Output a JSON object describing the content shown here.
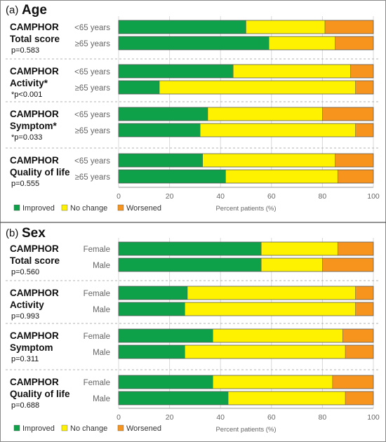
{
  "chart_data": [
    {
      "type": "bar",
      "orientation": "horizontal",
      "stacked": true,
      "panel_letter": "(a)",
      "title": "Age",
      "xlabel": "Percent patients (%)",
      "xlim": [
        0,
        100
      ],
      "xticks": [
        "0",
        "20",
        "40",
        "60",
        "80",
        "100"
      ],
      "grid": true,
      "legend_position": "bottom-left",
      "series_names": [
        "Improved",
        "No change",
        "Worsened"
      ],
      "colors": [
        "#0fa04a",
        "#fff200",
        "#f7941d"
      ],
      "groups": [
        {
          "name_lines": [
            "CAMPHOR",
            "Total score"
          ],
          "p_label": "p=0.583",
          "bars": [
            {
              "category": "<65 years",
              "values": [
                50,
                31,
                19
              ]
            },
            {
              "category": "≥65 years",
              "values": [
                59,
                26,
                15
              ]
            }
          ]
        },
        {
          "name_lines": [
            "CAMPHOR",
            "Activity*"
          ],
          "p_label": "*p<0.001",
          "bars": [
            {
              "category": "<65 years",
              "values": [
                45,
                46,
                9
              ]
            },
            {
              "category": "≥65 years",
              "values": [
                16,
                77,
                7
              ]
            }
          ]
        },
        {
          "name_lines": [
            "CAMPHOR",
            "Symptom*"
          ],
          "p_label": "*p=0.033",
          "bars": [
            {
              "category": "<65 years",
              "values": [
                35,
                45,
                20
              ]
            },
            {
              "category": "≥65 years",
              "values": [
                32,
                61,
                7
              ]
            }
          ]
        },
        {
          "name_lines": [
            "CAMPHOR",
            "Quality of life"
          ],
          "p_label": "p=0.555",
          "bars": [
            {
              "category": "<65 years",
              "values": [
                33,
                52,
                15
              ]
            },
            {
              "category": "≥65 years",
              "values": [
                42,
                44,
                14
              ]
            }
          ]
        }
      ]
    },
    {
      "type": "bar",
      "orientation": "horizontal",
      "stacked": true,
      "panel_letter": "(b)",
      "title": "Sex",
      "xlabel": "Percent patients (%)",
      "xlim": [
        0,
        100
      ],
      "xticks": [
        "0",
        "20",
        "40",
        "60",
        "80",
        "100"
      ],
      "grid": true,
      "legend_position": "bottom-left",
      "series_names": [
        "Improved",
        "No change",
        "Worsened"
      ],
      "colors": [
        "#0fa04a",
        "#fff200",
        "#f7941d"
      ],
      "groups": [
        {
          "name_lines": [
            "CAMPHOR",
            "Total score"
          ],
          "p_label": "p=0.560",
          "bars": [
            {
              "category": "Female",
              "values": [
                56,
                30,
                14
              ]
            },
            {
              "category": "Male",
              "values": [
                56,
                24,
                20
              ]
            }
          ]
        },
        {
          "name_lines": [
            "CAMPHOR",
            "Activity"
          ],
          "p_label": "p=0.993",
          "bars": [
            {
              "category": "Female",
              "values": [
                27,
                66,
                7
              ]
            },
            {
              "category": "Male",
              "values": [
                26,
                67,
                7
              ]
            }
          ]
        },
        {
          "name_lines": [
            "CAMPHOR",
            "Symptom"
          ],
          "p_label": "p=0.311",
          "bars": [
            {
              "category": "Female",
              "values": [
                37,
                51,
                12
              ]
            },
            {
              "category": "Male",
              "values": [
                26,
                63,
                11
              ]
            }
          ]
        },
        {
          "name_lines": [
            "CAMPHOR",
            "Quality of life"
          ],
          "p_label": "p=0.688",
          "bars": [
            {
              "category": "Female",
              "values": [
                37,
                47,
                16
              ]
            },
            {
              "category": "Male",
              "values": [
                43,
                46,
                11
              ]
            }
          ]
        }
      ]
    }
  ]
}
